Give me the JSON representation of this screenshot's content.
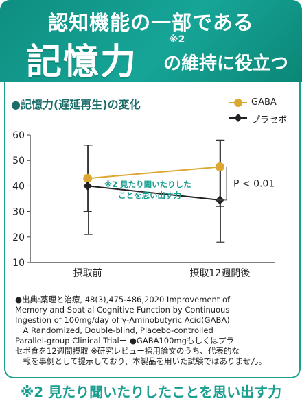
{
  "banner": {
    "line1": "認知機能の一部である",
    "big": "記憶力",
    "note_mark": "※2",
    "rest": "の維持に役立つ"
  },
  "chart_title": "●記憶力(遅延再生)の変化",
  "significance": "P < 0.01",
  "annotation": [
    "※2 見たり聞いたりした",
    "ことを思い出す力"
  ],
  "chart_data": {
    "type": "line",
    "categories": [
      "摂取前",
      "摂取12週間後"
    ],
    "ylim": [
      10,
      60
    ],
    "yticks": [
      10,
      20,
      30,
      40,
      50,
      60
    ],
    "legend_position": "top-right",
    "series": [
      {
        "name": "GABA",
        "color": "#dda832",
        "values": [
          43,
          47.5
        ],
        "error": [
          [
            30,
            56
          ],
          [
            32,
            58
          ]
        ]
      },
      {
        "name": "プラセボ",
        "color": "#222222",
        "values": [
          40,
          34.5
        ],
        "error": [
          [
            21,
            56
          ],
          [
            18,
            58
          ]
        ]
      }
    ]
  },
  "source_lines": [
    "●出典:薬理と治療, 48(3),475-486,2020 Improvement of",
    "Memory and Spatial Cognitive Function by Continuous",
    "Ingestion of 100mg/day of γ-Aminobutyric Acid(GABA)",
    "ーA Randomized, Double-blind, Placebo-controlled",
    "Parallel-group Clinical Trialー ●GABA100mgもしくはプラ",
    "セボ食を12週間摂取 ※研究レビュー採用論文のうち、代表的な",
    "一報を事例として提示しており、本製品を用いた試験ではありません。"
  ],
  "footer": "※2 見たり聞いたりしたことを思い出す力"
}
